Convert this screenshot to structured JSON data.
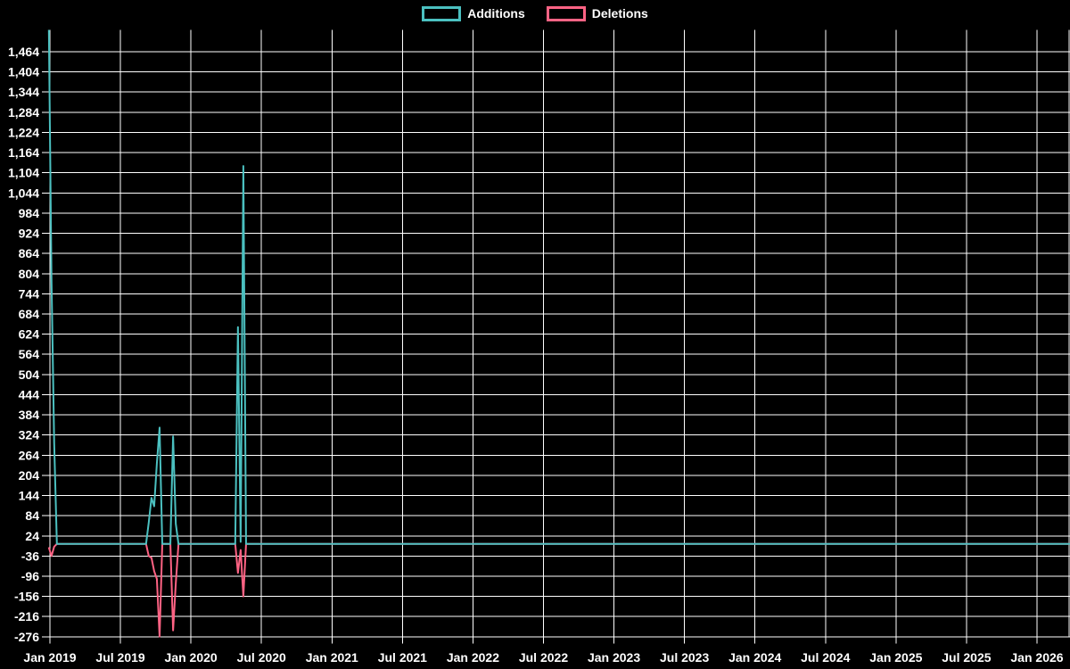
{
  "chart_data": {
    "type": "line",
    "title": "",
    "xlabel": "",
    "ylabel": "",
    "background_color": "#000000",
    "grid": true,
    "grid_color": "#ffffff",
    "text_color": "#ffffff",
    "legend_position": "top-center",
    "legend": [
      {
        "label": "Additions",
        "color": "#4bc0c0"
      },
      {
        "label": "Deletions",
        "color": "#ff6384"
      }
    ],
    "x_axis": {
      "tick_labels": [
        "Jan 2019",
        "Jul 2019",
        "Jan 2020",
        "Jul 2020",
        "Jan 2021",
        "Jul 2021",
        "Jan 2022",
        "Jul 2022",
        "Jan 2023",
        "Jul 2023",
        "Jan 2024",
        "Jul 2024",
        "Jan 2025",
        "Jul 2025",
        "Jan 2026"
      ],
      "tick_interval": "6 months",
      "view_start": "2018-12-29",
      "view_end": "2026-03-28"
    },
    "y_axis": {
      "tick_labels": [
        "1,464",
        "1,404",
        "1,344",
        "1,284",
        "1,224",
        "1,164",
        "1,104",
        "1,044",
        "984",
        "924",
        "864",
        "804",
        "744",
        "684",
        "624",
        "564",
        "504",
        "444",
        "384",
        "324",
        "264",
        "204",
        "144",
        "84",
        "24",
        "-36",
        "-96",
        "-156",
        "-216",
        "-276"
      ],
      "tick_max": 1464,
      "tick_min": -276,
      "tick_step": 60,
      "ylim": [
        -279,
        1529
      ]
    },
    "series": [
      {
        "name": "Additions",
        "color": "#4bc0c0",
        "baseline_value": 0,
        "interval_days": 7,
        "clipped_at_top": true,
        "nonzero_points": {
          "2018-12-29": 1560,
          "2019-01-05": 790,
          "2019-01-12": 300,
          "2019-09-14": 64,
          "2019-09-21": 137,
          "2019-09-28": 112,
          "2019-10-05": 240,
          "2019-10-12": 346,
          "2019-11-16": 320,
          "2019-11-23": 60,
          "2020-05-02": 645,
          "2020-05-09": 6,
          "2020-05-16": 1124
        }
      },
      {
        "name": "Deletions",
        "color": "#ff6384",
        "baseline_value": 0,
        "interval_days": 7,
        "nonzero_points": {
          "2018-12-29": -10,
          "2019-01-05": -36,
          "2019-01-12": -8,
          "2019-09-14": -36,
          "2019-09-21": -41,
          "2019-09-28": -81,
          "2019-10-05": -104,
          "2019-10-12": -276,
          "2019-11-16": -257,
          "2019-11-23": -117,
          "2020-05-02": -86,
          "2020-05-09": -18,
          "2020-05-16": -156
        }
      }
    ]
  }
}
